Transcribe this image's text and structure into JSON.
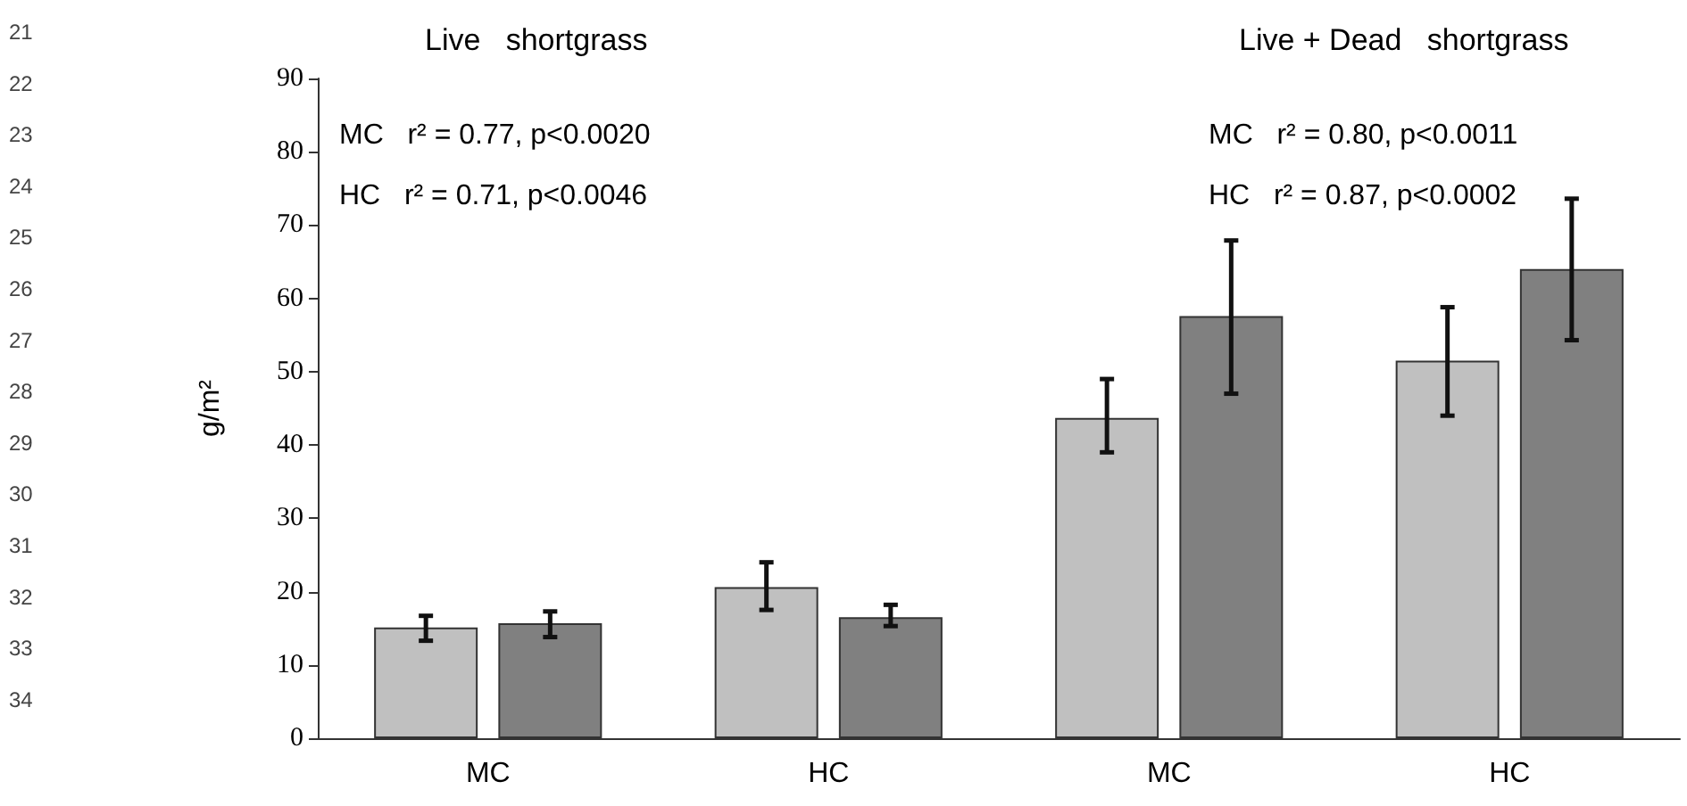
{
  "chart_data": {
    "type": "bar",
    "categories": [
      "MC",
      "HC",
      "MC",
      "HC"
    ],
    "ylabel": "g/m²",
    "ylim": [
      0,
      90
    ],
    "yticks": [
      0,
      10,
      20,
      30,
      40,
      50,
      60,
      70,
      80,
      90
    ],
    "series": [
      {
        "color": "#c0c0c0",
        "values": [
          15.1,
          20.6,
          43.7,
          51.5
        ],
        "errors": [
          [
            13.3,
            16.7
          ],
          [
            17.5,
            24.0
          ],
          [
            39.0,
            49.0
          ],
          [
            44.0,
            58.8
          ]
        ]
      },
      {
        "color": "#808080",
        "values": [
          15.7,
          16.5,
          57.6,
          64.0
        ],
        "errors": [
          [
            13.8,
            17.3
          ],
          [
            15.3,
            18.2
          ],
          [
            47.0,
            67.9
          ],
          [
            54.3,
            73.6
          ]
        ]
      }
    ],
    "annotations": [
      "Live   shortgrass",
      "Live + Dead   shortgrass",
      "MC   r² = 0.77, p<0.0020",
      "HC   r² = 0.71, p<0.0046",
      "MC   r² = 0.80, p<0.0011",
      "HC   r² = 0.87, p<0.0002",
      "21",
      "22",
      "23",
      "24",
      "25",
      "26",
      "27",
      "28",
      "29",
      "30",
      "31",
      "32",
      "33",
      "34"
    ],
    "grid": false
  }
}
